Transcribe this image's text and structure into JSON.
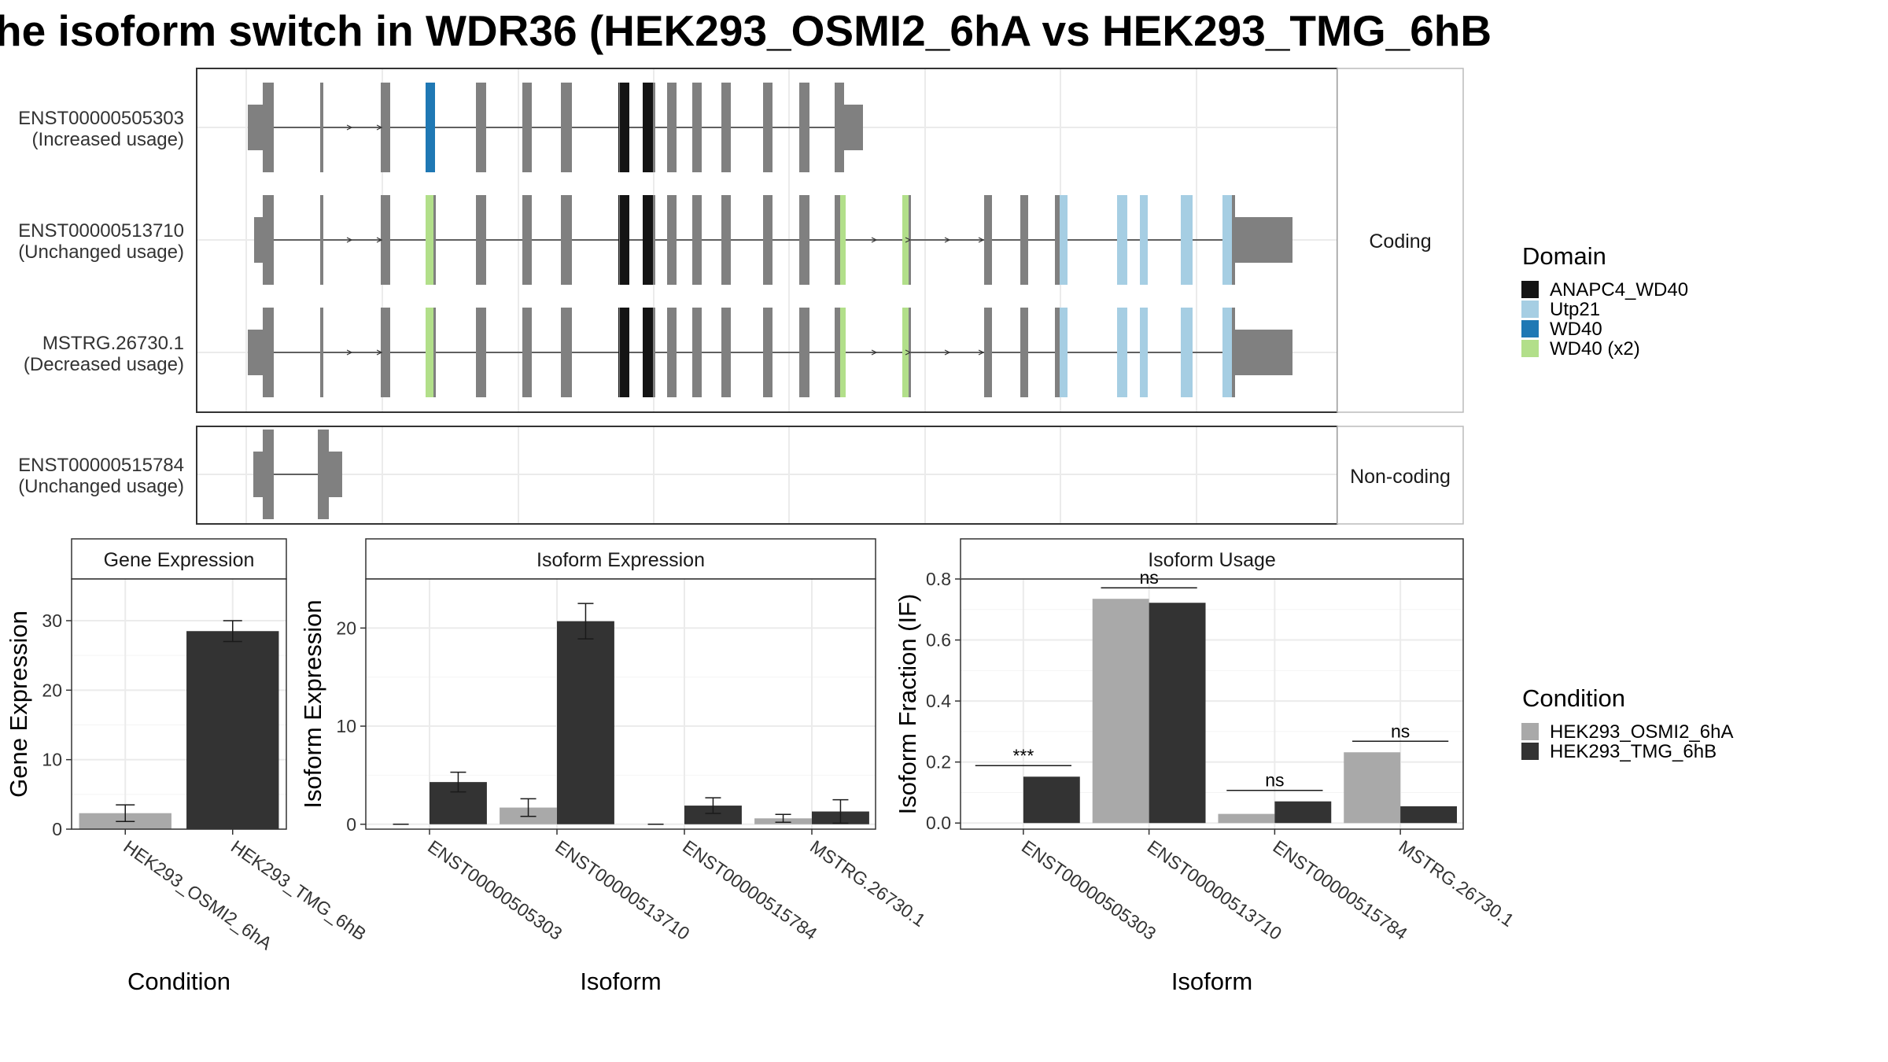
{
  "title": "he isoform switch in WDR36 (HEK293_OSMI2_6hA vs HEK293_TMG_6hB",
  "colors": {
    "exon": "#808080",
    "ANAPC4_WD40": "#141414",
    "Utp21": "#a6cee3",
    "WD40": "#1f78b4",
    "WD40 (x2)": "#b2df8a",
    "cond_a": "#a9a9a9",
    "cond_b": "#333333"
  },
  "structure": {
    "coding_label": "Coding",
    "noncoding_label": "Non-coding",
    "transcripts": [
      {
        "id": "ENST00000505303",
        "usage": "(Increased usage)",
        "group": "coding"
      },
      {
        "id": "ENST00000513710",
        "usage": "(Unchanged usage)",
        "group": "coding"
      },
      {
        "id": "MSTRG.26730.1",
        "usage": "(Decreased usage)",
        "group": "coding"
      },
      {
        "id": "ENST00000515784",
        "usage": "(Unchanged usage)",
        "group": "noncoding"
      }
    ]
  },
  "legend_domain": {
    "title": "Domain",
    "items": [
      "ANAPC4_WD40",
      "Utp21",
      "WD40",
      "WD40 (x2)"
    ]
  },
  "legend_condition": {
    "title": "Condition",
    "items": [
      "HEK293_OSMI2_6hA",
      "HEK293_TMG_6hB"
    ]
  },
  "chart_data": [
    {
      "type": "bar",
      "title": "Gene Expression",
      "xlabel": "Condition",
      "ylabel": "Gene Expression",
      "ylim": [
        0,
        36
      ],
      "yticks": [
        0,
        10,
        20,
        30
      ],
      "categories": [
        "HEK293_OSMI2_6hA",
        "HEK293_TMG_6hB"
      ],
      "values": [
        2.3,
        28.5
      ],
      "errors": [
        1.2,
        1.5
      ]
    },
    {
      "type": "bar",
      "title": "Isoform Expression",
      "xlabel": "Isoform",
      "ylabel": "Isoform Expression",
      "ylim": [
        -0.5,
        25
      ],
      "yticks": [
        0,
        10,
        20
      ],
      "categories": [
        "ENST00000505303",
        "ENST00000513710",
        "ENST00000515784",
        "MSTRG.26730.1"
      ],
      "series": [
        {
          "name": "HEK293_OSMI2_6hA",
          "values": [
            0.0,
            1.7,
            0.0,
            0.6
          ],
          "errors": [
            0.0,
            0.9,
            0.0,
            0.4
          ]
        },
        {
          "name": "HEK293_TMG_6hB",
          "values": [
            4.3,
            20.7,
            1.9,
            1.3
          ],
          "errors": [
            1.0,
            1.8,
            0.8,
            1.2
          ]
        }
      ]
    },
    {
      "type": "bar",
      "title": "Isoform Usage",
      "xlabel": "Isoform",
      "ylabel": "Isoform Fraction (IF)",
      "ylim": [
        -0.02,
        0.8
      ],
      "yticks": [
        0.0,
        0.2,
        0.4,
        0.6,
        0.8
      ],
      "categories": [
        "ENST00000505303",
        "ENST00000513710",
        "ENST00000515784",
        "MSTRG.26730.1"
      ],
      "series": [
        {
          "name": "HEK293_OSMI2_6hA",
          "values": [
            0.0,
            0.735,
            0.03,
            0.232
          ]
        },
        {
          "name": "HEK293_TMG_6hB",
          "values": [
            0.152,
            0.722,
            0.071,
            0.055
          ]
        }
      ],
      "significance": [
        "***",
        "ns",
        "ns",
        "ns"
      ]
    }
  ]
}
